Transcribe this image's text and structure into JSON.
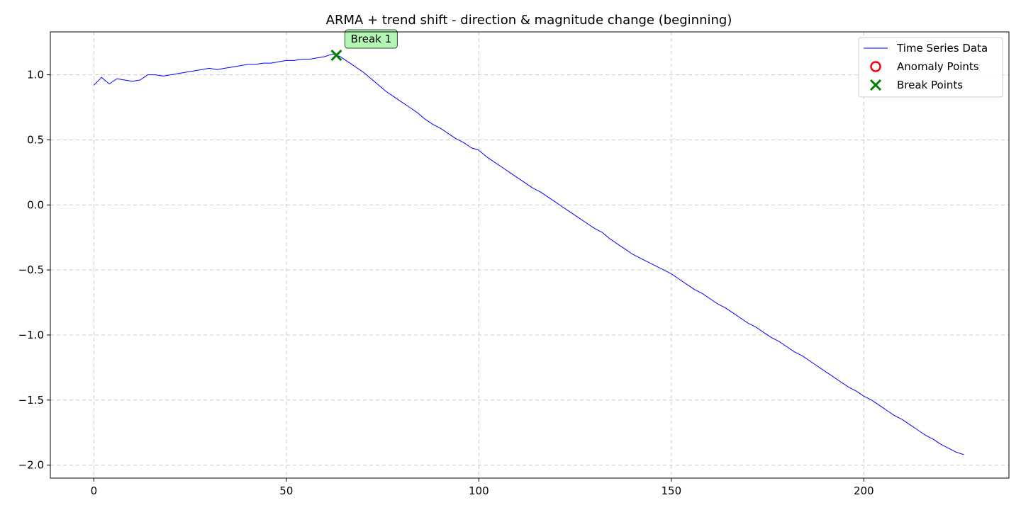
{
  "chart_data": {
    "type": "line",
    "title": "ARMA + trend shift - direction & magnitude change (beginning)",
    "xlabel": "",
    "ylabel": "",
    "xlim": [
      -11.3,
      237.7
    ],
    "ylim": [
      -2.1,
      1.33
    ],
    "xticks": [
      0,
      50,
      100,
      150,
      200
    ],
    "xtick_labels": [
      "0",
      "50",
      "100",
      "150",
      "200"
    ],
    "yticks": [
      1.0,
      0.5,
      0.0,
      -0.5,
      -1.0,
      -1.5,
      -2.0
    ],
    "ytick_labels": [
      "1.0",
      "0.5",
      "0.0",
      "−0.5",
      "−1.0",
      "−1.5",
      "−2.0"
    ],
    "grid": true,
    "legend_position": "top-right",
    "colors": {
      "series": "#0000ff",
      "anomaly": "#ff0000",
      "break": "#008000",
      "grid": "#cccccc",
      "annotation_fill": "#b3f5b3"
    },
    "series": [
      {
        "name": "Time Series Data",
        "x": [
          0,
          2,
          4,
          6,
          8,
          10,
          12,
          14,
          16,
          18,
          20,
          22,
          24,
          26,
          28,
          30,
          32,
          34,
          36,
          38,
          40,
          42,
          44,
          46,
          48,
          50,
          52,
          54,
          56,
          58,
          60,
          62,
          63,
          64,
          66,
          68,
          70,
          72,
          74,
          76,
          78,
          80,
          82,
          84,
          86,
          88,
          90,
          92,
          94,
          96,
          98,
          100,
          102,
          104,
          106,
          108,
          110,
          112,
          114,
          116,
          118,
          120,
          122,
          124,
          126,
          128,
          130,
          132,
          134,
          136,
          138,
          140,
          142,
          144,
          146,
          148,
          150,
          152,
          154,
          156,
          158,
          160,
          162,
          164,
          166,
          168,
          170,
          172,
          174,
          176,
          178,
          180,
          182,
          184,
          186,
          188,
          190,
          192,
          194,
          196,
          198,
          200,
          202,
          204,
          206,
          208,
          210,
          212,
          214,
          216,
          218,
          220,
          222,
          224,
          226
        ],
        "values": [
          0.92,
          0.98,
          0.93,
          0.97,
          0.96,
          0.95,
          0.96,
          1.0,
          1.0,
          0.99,
          1.0,
          1.01,
          1.02,
          1.03,
          1.04,
          1.05,
          1.04,
          1.05,
          1.06,
          1.07,
          1.08,
          1.08,
          1.09,
          1.09,
          1.1,
          1.11,
          1.11,
          1.12,
          1.12,
          1.13,
          1.14,
          1.16,
          1.15,
          1.14,
          1.1,
          1.06,
          1.02,
          0.97,
          0.92,
          0.87,
          0.83,
          0.79,
          0.75,
          0.71,
          0.66,
          0.62,
          0.59,
          0.55,
          0.51,
          0.48,
          0.44,
          0.42,
          0.37,
          0.33,
          0.29,
          0.25,
          0.21,
          0.17,
          0.13,
          0.1,
          0.06,
          0.02,
          -0.02,
          -0.06,
          -0.1,
          -0.14,
          -0.18,
          -0.21,
          -0.26,
          -0.3,
          -0.34,
          -0.38,
          -0.41,
          -0.44,
          -0.47,
          -0.5,
          -0.53,
          -0.57,
          -0.61,
          -0.65,
          -0.68,
          -0.72,
          -0.76,
          -0.79,
          -0.83,
          -0.87,
          -0.91,
          -0.94,
          -0.98,
          -1.02,
          -1.05,
          -1.09,
          -1.13,
          -1.16,
          -1.2,
          -1.24,
          -1.28,
          -1.32,
          -1.36,
          -1.4,
          -1.43,
          -1.47,
          -1.5,
          -1.54,
          -1.58,
          -1.62,
          -1.65,
          -1.69,
          -1.73,
          -1.77,
          -1.8,
          -1.84,
          -1.87,
          -1.9,
          -1.92
        ]
      }
    ],
    "break_points": [
      {
        "x": 63,
        "y": 1.15,
        "label": "Break 1"
      }
    ],
    "anomaly_points": [],
    "legend": [
      {
        "label": "Time Series Data",
        "symbol": "line"
      },
      {
        "label": "Anomaly Points",
        "symbol": "circle"
      },
      {
        "label": "Break Points",
        "symbol": "x"
      }
    ]
  }
}
